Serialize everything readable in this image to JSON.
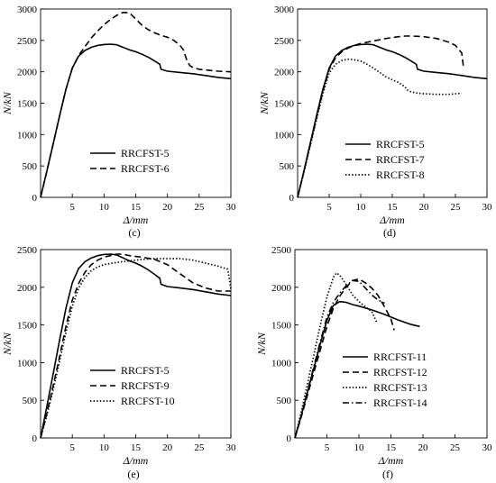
{
  "chart_data": [
    {
      "type": "line",
      "panel_label": "(c)",
      "xlabel": "Δ/mm",
      "ylabel": "N/kN",
      "xlim": [
        0,
        30
      ],
      "ylim": [
        0,
        3000
      ],
      "xticks": [
        5,
        10,
        15,
        20,
        25,
        30
      ],
      "yticks": [
        0,
        500,
        1000,
        1500,
        2000,
        2500,
        3000
      ],
      "legend_position": "bottom-right",
      "series": [
        {
          "name": "RRCFST-5",
          "dash": "solid",
          "x": [
            0,
            1,
            2,
            3,
            4,
            5,
            6,
            7,
            8,
            9,
            10,
            11,
            12,
            13,
            14,
            15,
            16,
            17,
            18,
            18.8,
            19,
            20,
            22,
            24,
            26,
            28,
            30
          ],
          "y": [
            0,
            420,
            860,
            1300,
            1720,
            2060,
            2250,
            2340,
            2390,
            2420,
            2435,
            2440,
            2430,
            2390,
            2350,
            2320,
            2280,
            2230,
            2170,
            2120,
            2040,
            2010,
            1990,
            1970,
            1940,
            1910,
            1890
          ]
        },
        {
          "name": "RRCFST-6",
          "dash": "dashed",
          "x": [
            0,
            1,
            2,
            3,
            4,
            5,
            6,
            7,
            8,
            9,
            10,
            11,
            12,
            13,
            14,
            15,
            16,
            17,
            18,
            19,
            20,
            21,
            22,
            22.5,
            23,
            23.5,
            24,
            25,
            26,
            27,
            28,
            29,
            30
          ],
          "y": [
            0,
            420,
            860,
            1300,
            1720,
            2060,
            2260,
            2400,
            2540,
            2650,
            2750,
            2830,
            2900,
            2945,
            2940,
            2840,
            2740,
            2670,
            2620,
            2580,
            2550,
            2500,
            2420,
            2350,
            2200,
            2100,
            2070,
            2040,
            2030,
            2020,
            2010,
            2005,
            2000
          ]
        }
      ]
    },
    {
      "type": "line",
      "panel_label": "(d)",
      "xlabel": "Δ/mm",
      "ylabel": "N/kN",
      "xlim": [
        0,
        30
      ],
      "ylim": [
        0,
        3000
      ],
      "xticks": [
        5,
        10,
        15,
        20,
        25,
        30
      ],
      "yticks": [
        0,
        500,
        1000,
        1500,
        2000,
        2500,
        3000
      ],
      "legend_position": "bottom-right",
      "series": [
        {
          "name": "RRCFST-5",
          "dash": "solid",
          "x": [
            0,
            1,
            2,
            3,
            4,
            5,
            6,
            7,
            8,
            9,
            10,
            11,
            12,
            13,
            14,
            15,
            16,
            17,
            18,
            18.8,
            19,
            20,
            22,
            24,
            26,
            28,
            30
          ],
          "y": [
            0,
            420,
            860,
            1300,
            1720,
            2060,
            2250,
            2340,
            2390,
            2420,
            2435,
            2440,
            2430,
            2390,
            2350,
            2320,
            2280,
            2230,
            2170,
            2120,
            2040,
            2010,
            1990,
            1970,
            1940,
            1910,
            1890
          ]
        },
        {
          "name": "RRCFST-7",
          "dash": "dashed",
          "x": [
            0,
            1,
            2,
            3,
            4,
            5,
            6,
            7,
            8,
            9,
            10,
            12,
            14,
            16,
            17,
            18,
            20,
            22,
            24,
            25,
            26,
            26.3
          ],
          "y": [
            0,
            410,
            840,
            1270,
            1690,
            2040,
            2220,
            2320,
            2380,
            2420,
            2450,
            2490,
            2530,
            2560,
            2570,
            2570,
            2560,
            2530,
            2470,
            2420,
            2300,
            2050
          ]
        },
        {
          "name": "RRCFST-8",
          "dash": "dotted",
          "x": [
            0,
            1,
            2,
            3,
            4,
            5,
            6,
            7,
            8,
            9,
            10,
            11,
            12,
            13,
            14,
            15,
            16,
            17,
            17.5,
            18,
            19,
            20,
            22,
            24,
            26
          ],
          "y": [
            0,
            400,
            820,
            1240,
            1650,
            1980,
            2120,
            2180,
            2200,
            2190,
            2170,
            2120,
            2060,
            1990,
            1920,
            1870,
            1830,
            1760,
            1700,
            1680,
            1660,
            1650,
            1640,
            1640,
            1660
          ]
        }
      ]
    },
    {
      "type": "line",
      "panel_label": "(e)",
      "xlabel": "Δ/mm",
      "ylabel": "N/kN",
      "xlim": [
        0,
        30
      ],
      "ylim": [
        0,
        2500
      ],
      "xticks": [
        5,
        10,
        15,
        20,
        25,
        30
      ],
      "yticks": [
        0,
        500,
        1000,
        1500,
        2000,
        2500
      ],
      "legend_position": "bottom-right",
      "series": [
        {
          "name": "RRCFST-5",
          "dash": "solid",
          "x": [
            0,
            1,
            2,
            3,
            4,
            5,
            6,
            7,
            8,
            9,
            10,
            11,
            12,
            13,
            14,
            15,
            16,
            17,
            18,
            18.8,
            19,
            20,
            22,
            24,
            26,
            28,
            30
          ],
          "y": [
            0,
            420,
            860,
            1300,
            1720,
            2060,
            2250,
            2340,
            2390,
            2420,
            2435,
            2440,
            2430,
            2390,
            2350,
            2320,
            2280,
            2230,
            2170,
            2120,
            2040,
            2010,
            1990,
            1970,
            1940,
            1910,
            1890
          ]
        },
        {
          "name": "RRCFST-9",
          "dash": "dashed",
          "x": [
            0,
            1,
            2,
            3,
            4,
            5,
            6,
            7,
            8,
            9,
            10,
            11,
            12,
            13,
            14,
            16,
            18,
            20,
            22,
            24,
            26,
            28,
            30
          ],
          "y": [
            0,
            330,
            700,
            1080,
            1480,
            1830,
            2050,
            2200,
            2300,
            2360,
            2400,
            2420,
            2440,
            2440,
            2420,
            2400,
            2370,
            2300,
            2180,
            2060,
            1990,
            1950,
            1950
          ]
        },
        {
          "name": "RRCFST-10",
          "dash": "dotted",
          "x": [
            0,
            1,
            2,
            3,
            4,
            5,
            6,
            7,
            8,
            9,
            10,
            12,
            14,
            16,
            18,
            20,
            22,
            24,
            26,
            28,
            29.5,
            30
          ],
          "y": [
            0,
            300,
            650,
            1020,
            1400,
            1750,
            1990,
            2130,
            2220,
            2270,
            2300,
            2330,
            2350,
            2370,
            2380,
            2380,
            2380,
            2360,
            2320,
            2280,
            2240,
            1980
          ]
        }
      ]
    },
    {
      "type": "line",
      "panel_label": "(f)",
      "xlabel": "Δ/mm",
      "ylabel": "N/kN",
      "xlim": [
        0,
        30
      ],
      "ylim": [
        0,
        2500
      ],
      "xticks": [
        5,
        10,
        15,
        20,
        25,
        30
      ],
      "yticks": [
        0,
        500,
        1000,
        1500,
        2000,
        2500
      ],
      "legend_position": "bottom-right",
      "series": [
        {
          "name": "RRCFST-11",
          "dash": "solid",
          "x": [
            0,
            1,
            2,
            3,
            4,
            5,
            6,
            7,
            8,
            9,
            10,
            12,
            14,
            16,
            18,
            19.5
          ],
          "y": [
            0,
            300,
            620,
            940,
            1260,
            1560,
            1760,
            1810,
            1800,
            1770,
            1750,
            1700,
            1640,
            1570,
            1510,
            1480
          ]
        },
        {
          "name": "RRCFST-12",
          "dash": "dashed",
          "x": [
            0,
            1,
            2,
            3,
            4,
            5,
            6,
            7,
            8,
            9,
            10,
            11,
            12,
            13,
            14,
            15,
            15.5
          ],
          "y": [
            0,
            280,
            580,
            880,
            1180,
            1480,
            1720,
            1880,
            2000,
            2090,
            2110,
            2060,
            1990,
            1890,
            1740,
            1580,
            1430
          ]
        },
        {
          "name": "RRCFST-13",
          "dash": "dotted",
          "x": [
            0,
            1,
            2,
            3,
            4,
            5,
            6,
            6.5,
            7,
            8,
            9,
            10,
            11,
            12,
            12.8
          ],
          "y": [
            0,
            350,
            730,
            1120,
            1510,
            1870,
            2130,
            2190,
            2160,
            2040,
            1900,
            1810,
            1740,
            1680,
            1530
          ]
        },
        {
          "name": "RRCFST-14",
          "dash": "dashdot",
          "x": [
            0,
            1,
            2,
            3,
            4,
            5,
            6,
            7,
            8,
            9,
            10,
            11,
            12,
            13,
            14
          ],
          "y": [
            0,
            300,
            630,
            960,
            1290,
            1600,
            1800,
            1920,
            2020,
            2090,
            2080,
            1990,
            1900,
            1830,
            1790
          ]
        }
      ]
    }
  ]
}
